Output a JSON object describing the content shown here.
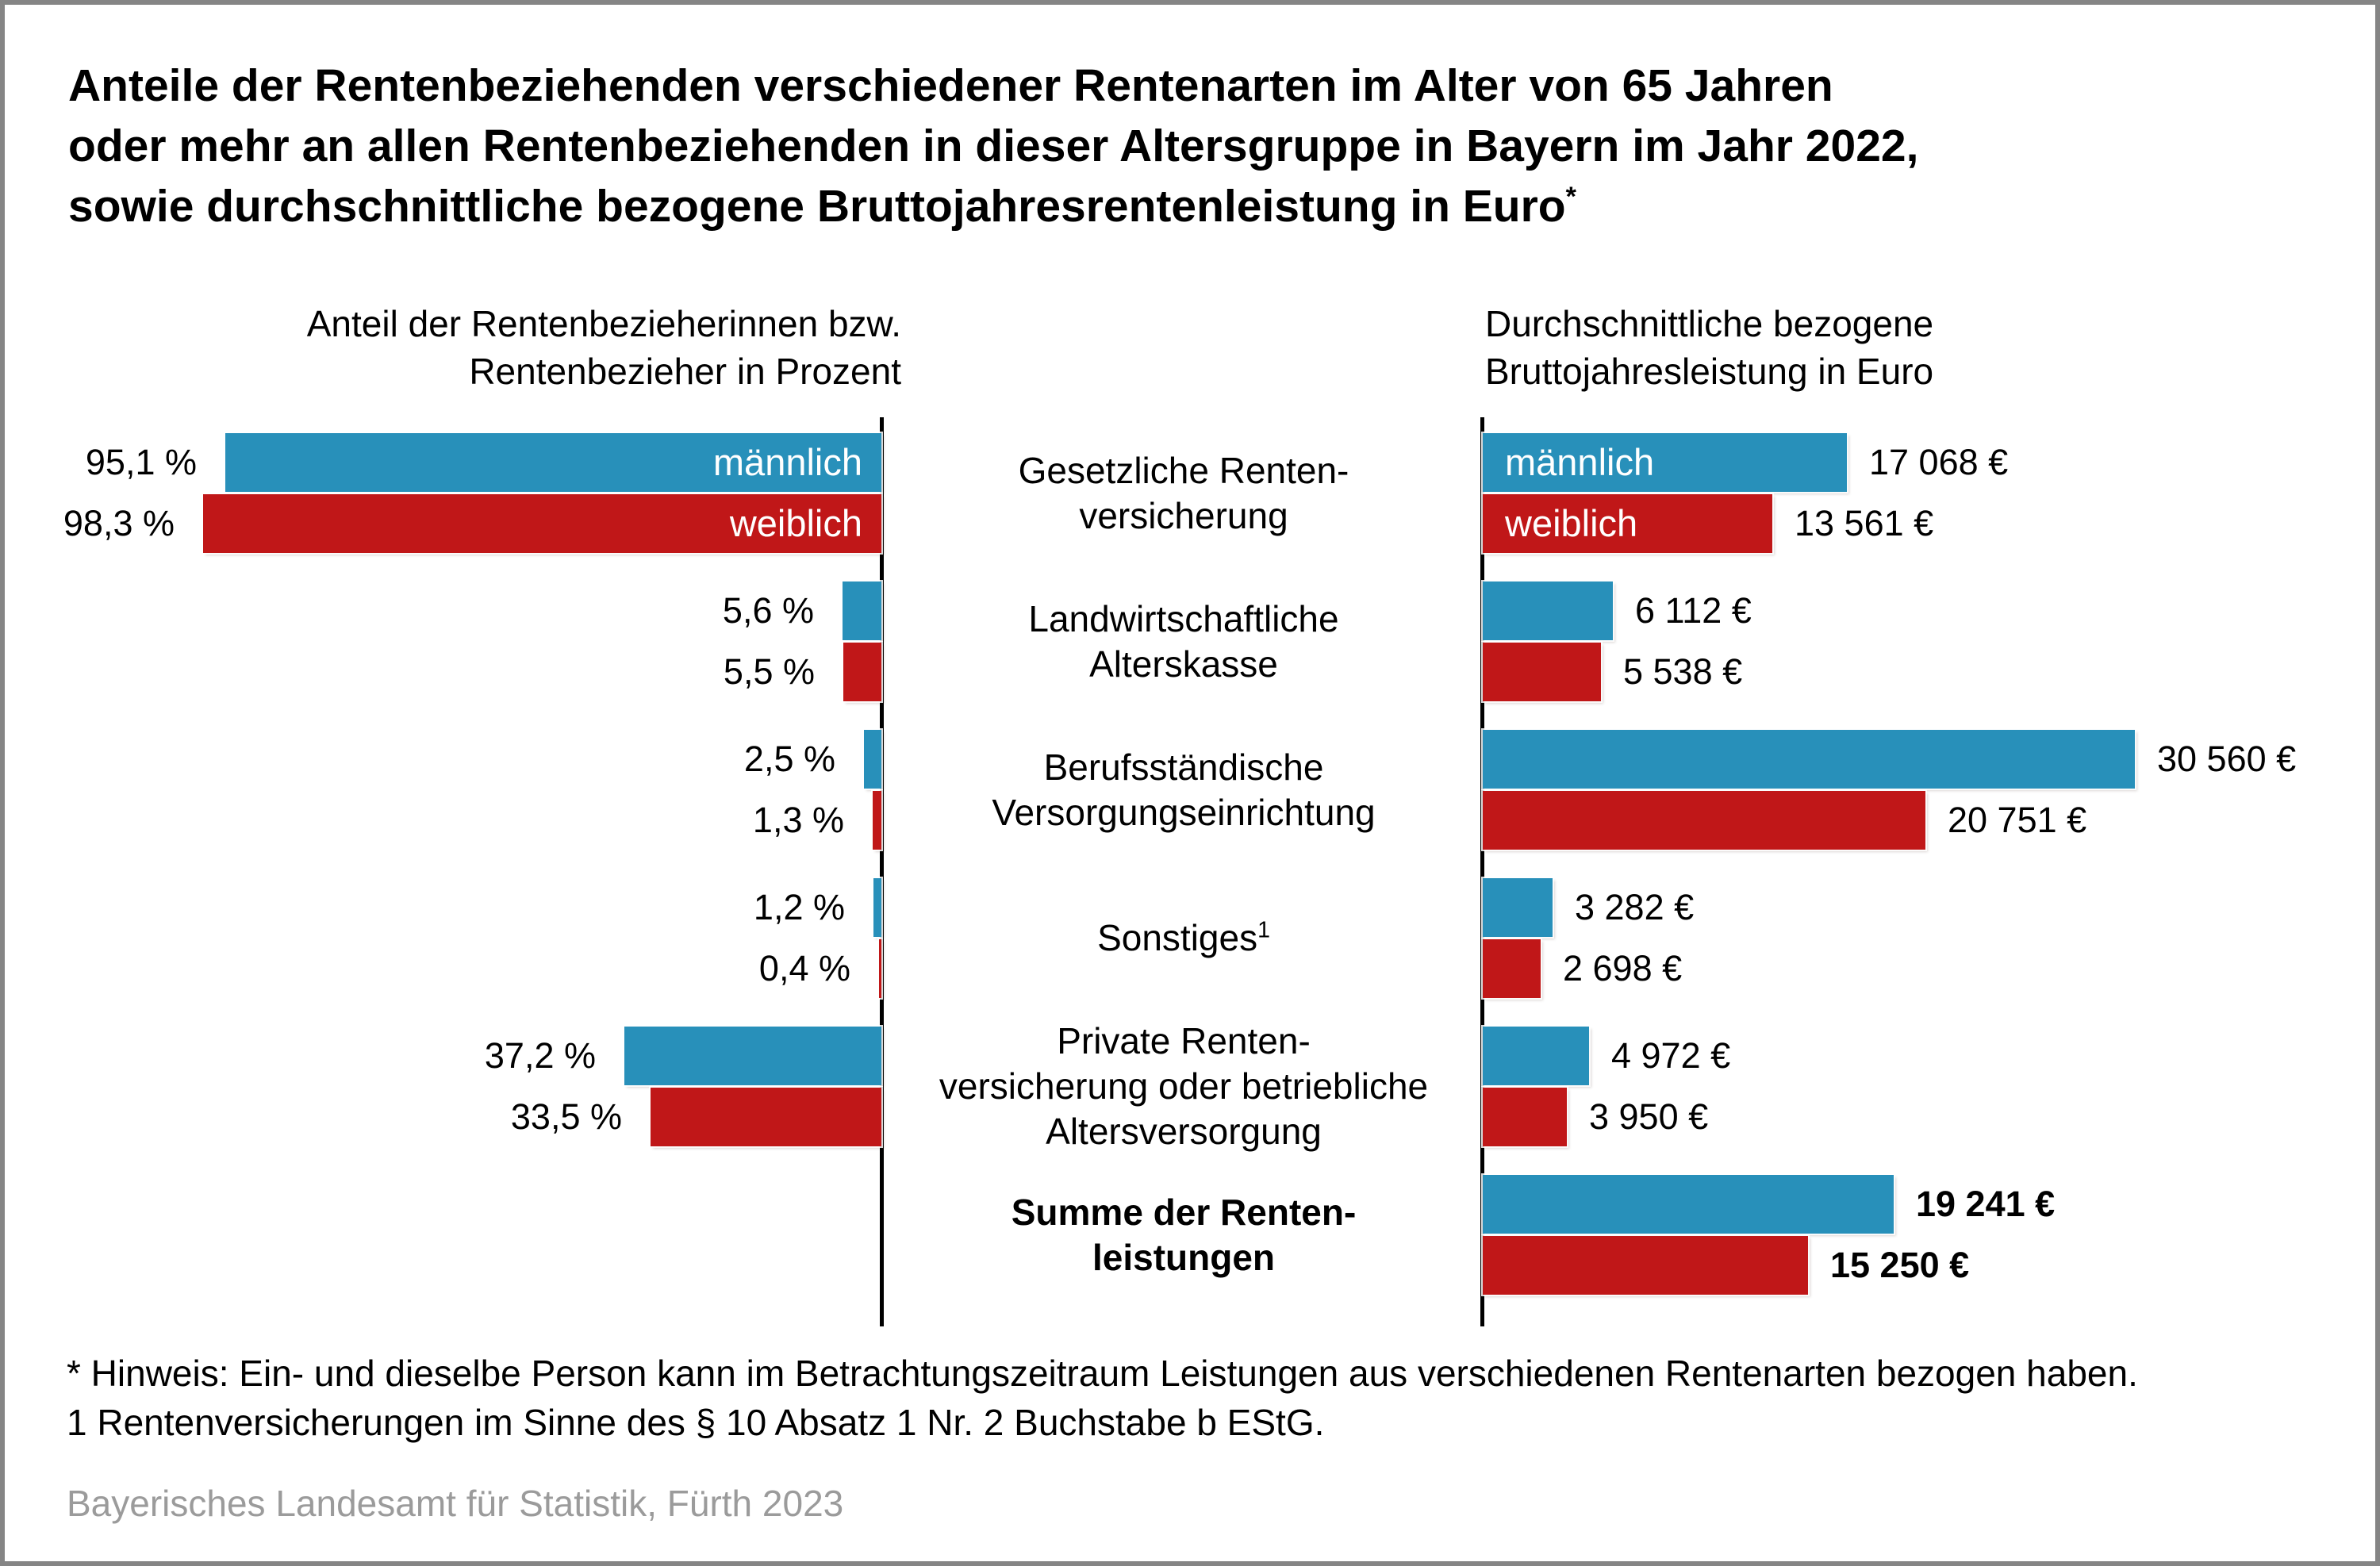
{
  "title": {
    "lines": [
      "Anteile der Rentenbeziehenden verschiedener Rentenarten im Alter von 65 Jahren",
      "oder mehr an allen Rentenbeziehenden in dieser Altersgruppe in Bayern im Jahr 2022,",
      "sowie durchschnittliche bezogene Bruttojahresrentenleistung in Euro"
    ],
    "superscript": "*"
  },
  "colors": {
    "bar_male": "#2890BA",
    "bar_female": "#C01718",
    "axis": "#000000",
    "text": "#000000",
    "source_text": "#9B9B9B",
    "frame": "#858585"
  },
  "chart_data": {
    "type": "bar",
    "orientation": "horizontal-paired",
    "grid": false,
    "legend_position": "inside-first-bars",
    "legend": {
      "male": "männlich",
      "female": "weiblich"
    },
    "categories": [
      {
        "lines": [
          "Gesetzliche Renten-",
          "versicherung"
        ],
        "bold": false,
        "footnote_marker": null,
        "bar_gender_labels": true
      },
      {
        "lines": [
          "Landwirtschaftliche",
          "Alterskasse"
        ],
        "bold": false,
        "footnote_marker": null,
        "bar_gender_labels": false
      },
      {
        "lines": [
          "Berufsständische",
          "Versorgungseinrichtung"
        ],
        "bold": false,
        "footnote_marker": null,
        "bar_gender_labels": false
      },
      {
        "lines": [
          "Sonstiges"
        ],
        "bold": false,
        "footnote_marker": "1",
        "bar_gender_labels": false
      },
      {
        "lines": [
          "Private Renten-",
          "versicherung oder betriebliche",
          "Altersversorgung"
        ],
        "bold": false,
        "footnote_marker": null,
        "bar_gender_labels": false
      },
      {
        "lines": [
          "Summe der Renten-",
          "leistungen"
        ],
        "bold": true,
        "footnote_marker": null,
        "bar_gender_labels": false
      }
    ],
    "panels": [
      {
        "id": "percent",
        "title_lines": [
          "Anteil der Rentenbezieherinnen bzw.",
          "Rentenbezieher in Prozent"
        ],
        "unit": "%",
        "xlim": [
          0,
          100
        ],
        "direction": "right-to-left",
        "series": [
          {
            "name": "männlich",
            "values": [
              95.1,
              5.6,
              2.5,
              1.2,
              37.2,
              null
            ]
          },
          {
            "name": "weiblich",
            "values": [
              98.3,
              5.5,
              1.3,
              0.4,
              33.5,
              null
            ]
          }
        ],
        "value_labels": [
          [
            "95,1 %",
            "98,3 %"
          ],
          [
            "5,6 %",
            "5,5 %"
          ],
          [
            "2,5 %",
            "1,3 %"
          ],
          [
            "1,2 %",
            "0,4 %"
          ],
          [
            "37,2 %",
            "33,5 %"
          ],
          [
            null,
            null
          ]
        ]
      },
      {
        "id": "euro",
        "title_lines": [
          "Durchschnittliche bezogene",
          "Bruttojahresleistung in Euro"
        ],
        "unit": "€",
        "xlim": [
          0,
          30560
        ],
        "direction": "left-to-right",
        "series": [
          {
            "name": "männlich",
            "values": [
              17068,
              6112,
              30560,
              3282,
              4972,
              19241
            ]
          },
          {
            "name": "weiblich",
            "values": [
              13561,
              5538,
              20751,
              2698,
              3950,
              15250
            ]
          }
        ],
        "value_labels": [
          [
            "17 068 €",
            "13 561 €"
          ],
          [
            "6 112 €",
            "5 538 €"
          ],
          [
            "30 560 €",
            "20 751 €"
          ],
          [
            "3 282 €",
            "2 698 €"
          ],
          [
            "4 972 €",
            "3 950 €"
          ],
          [
            "19 241 €",
            "15 250 €"
          ]
        ]
      }
    ]
  },
  "footnotes": [
    "* Hinweis: Ein- und dieselbe Person kann im Betrachtungszeitraum Leistungen aus verschiedenen Rentenarten bezogen haben.",
    "1 Rentenversicherungen im Sinne des § 10 Absatz 1 Nr. 2 Buchstabe b EStG."
  ],
  "source": "Bayerisches Landesamt für Statistik, Fürth 2023"
}
